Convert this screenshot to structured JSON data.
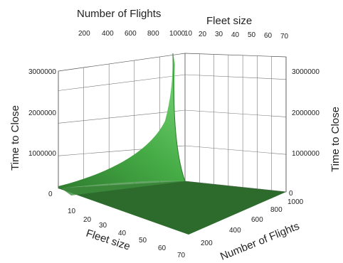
{
  "chart_data": {
    "type": "surface3d",
    "title": "",
    "axes": {
      "fleet_size": {
        "label": "Fleet size",
        "range": [
          0,
          70
        ],
        "ticks": [
          10,
          20,
          30,
          40,
          50,
          60,
          70
        ]
      },
      "number_of_flights": {
        "label": "Number of Flights",
        "range": [
          0,
          1000
        ],
        "ticks_front": [
          0,
          200,
          400,
          600,
          800,
          1000
        ],
        "ticks_top": [
          200,
          400,
          600,
          800,
          1000
        ]
      },
      "time_to_close": {
        "label": "Time to Close",
        "range": [
          0,
          3600000
        ],
        "ticks": [
          0,
          1000000,
          2000000,
          3000000
        ]
      }
    },
    "surface": {
      "description_values": "Time to close is near zero across most of the domain and rises steeply toward small fleet size and high number of flights.",
      "fleet_size": [
        0,
        10,
        20,
        30,
        40,
        50,
        60,
        70
      ],
      "number_of_flights": [
        0,
        200,
        400,
        600,
        800,
        1000
      ],
      "peak": {
        "fleet_size": 0,
        "number_of_flights": 1000,
        "time_to_close": 3500000
      },
      "samples": [
        {
          "fleet_size": 0,
          "number_of_flights": 0,
          "time_to_close": 150000
        },
        {
          "fleet_size": 0,
          "number_of_flights": 400,
          "time_to_close": 500000
        },
        {
          "fleet_size": 0,
          "number_of_flights": 800,
          "time_to_close": 1500000
        },
        {
          "fleet_size": 0,
          "number_of_flights": 1000,
          "time_to_close": 3500000
        },
        {
          "fleet_size": 70,
          "number_of_flights": 0,
          "time_to_close": 0
        },
        {
          "fleet_size": 70,
          "number_of_flights": 1000,
          "time_to_close": 0
        }
      ]
    },
    "colors": {
      "surface_light": "#6fd06f",
      "surface_mid": "#3ea83e",
      "surface_dark": "#2a6e2a"
    },
    "grid": true
  }
}
